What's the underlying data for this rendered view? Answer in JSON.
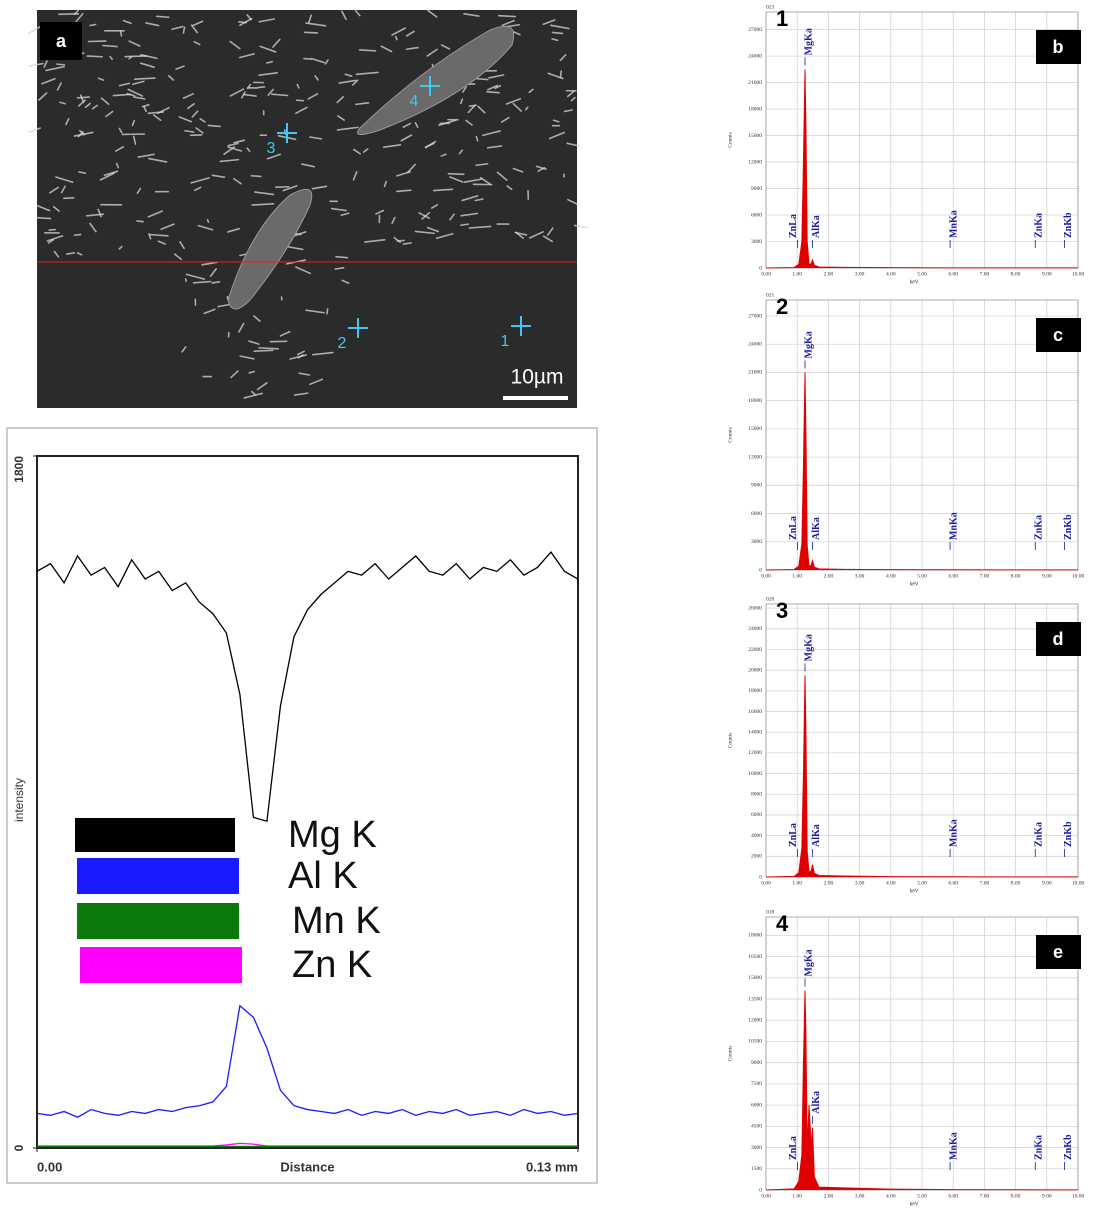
{
  "image": {
    "panel_label": "a",
    "spots": [
      "1",
      "2",
      "3",
      "4"
    ],
    "scale_bar": "10µm"
  },
  "chart_data": [
    {
      "type": "line",
      "xlabel": "Distance",
      "ylabel": "intensity",
      "xlim": [
        0,
        0.13
      ],
      "xticks": [
        {
          "value": 0,
          "label": "0.00"
        },
        {
          "value": 0.13,
          "label": "0.13 mm"
        }
      ],
      "ylim": [
        0,
        1800
      ],
      "yticks": [
        0,
        1800
      ],
      "x": [
        0,
        0.00325,
        0.0065,
        0.00975,
        0.013,
        0.01625,
        0.0195,
        0.02275,
        0.026,
        0.02925,
        0.0325,
        0.03575,
        0.039,
        0.04225,
        0.0455,
        0.04875,
        0.052,
        0.05525,
        0.0585,
        0.06175,
        0.065,
        0.06825,
        0.0715,
        0.07475,
        0.078,
        0.08125,
        0.0845,
        0.08775,
        0.091,
        0.09425,
        0.0975,
        0.10075,
        0.104,
        0.10725,
        0.1105,
        0.11375,
        0.117,
        0.12025,
        0.1235,
        0.12675,
        0.13
      ],
      "series": [
        {
          "name": "Mg K",
          "color": "#000000",
          "values": [
            1500,
            1520,
            1470,
            1540,
            1490,
            1510,
            1460,
            1530,
            1480,
            1500,
            1450,
            1470,
            1420,
            1390,
            1340,
            1180,
            860,
            850,
            1150,
            1330,
            1400,
            1440,
            1470,
            1500,
            1490,
            1520,
            1480,
            1510,
            1540,
            1500,
            1490,
            1520,
            1480,
            1510,
            1500,
            1530,
            1490,
            1510,
            1550,
            1500,
            1480
          ]
        },
        {
          "name": "Al K",
          "color": "#1a1aff",
          "values": [
            90,
            85,
            95,
            80,
            100,
            90,
            85,
            95,
            90,
            100,
            95,
            105,
            110,
            120,
            160,
            370,
            340,
            260,
            150,
            110,
            100,
            95,
            90,
            100,
            85,
            95,
            90,
            100,
            85,
            95,
            90,
            100,
            85,
            90,
            95,
            85,
            100,
            90,
            95,
            85,
            90
          ]
        },
        {
          "name": "Mn K",
          "color": "#0b7a0b",
          "values": [
            4,
            4,
            4,
            4,
            4,
            4,
            4,
            4,
            4,
            4,
            4,
            4,
            4,
            4,
            4,
            4,
            4,
            4,
            4,
            4,
            4,
            4,
            4,
            4,
            4,
            4,
            4,
            4,
            4,
            4,
            4,
            4,
            4,
            4,
            4,
            4,
            4,
            4,
            4,
            4,
            4
          ]
        },
        {
          "name": "Zn K",
          "color": "#ff00ff",
          "values": [
            5,
            5,
            5,
            5,
            5,
            5,
            5,
            5,
            5,
            5,
            5,
            5,
            5,
            5,
            8,
            12,
            10,
            5,
            5,
            5,
            5,
            5,
            5,
            5,
            5,
            5,
            5,
            5,
            5,
            5,
            5,
            5,
            5,
            5,
            5,
            5,
            5,
            5,
            5,
            5,
            5
          ]
        }
      ]
    },
    {
      "type": "area",
      "panel_label": "b",
      "spot_label": "1",
      "corner_label": "023",
      "xlabel": "keV",
      "ylabel": "Counts",
      "grid": true,
      "xlim": [
        0,
        10
      ],
      "xticks": [
        {
          "value": 0,
          "label": "0.00"
        },
        {
          "value": 1,
          "label": "1.00"
        },
        {
          "value": 2,
          "label": "2.00"
        },
        {
          "value": 3,
          "label": "3.00"
        },
        {
          "value": 4,
          "label": "4.00"
        },
        {
          "value": 5,
          "label": "5.00"
        },
        {
          "value": 6,
          "label": "6.00"
        },
        {
          "value": 7,
          "label": "7.00"
        },
        {
          "value": 8,
          "label": "8.00"
        },
        {
          "value": 9,
          "label": "9.00"
        },
        {
          "value": 10,
          "label": "10.00"
        }
      ],
      "ylim": [
        0,
        29000
      ],
      "yticks": [
        0,
        3000,
        6000,
        9000,
        12000,
        15000,
        18000,
        21000,
        24000,
        27000
      ],
      "x": [
        0,
        0.9,
        1.05,
        1.15,
        1.2,
        1.25,
        1.28,
        1.32,
        1.38,
        1.45,
        1.49,
        1.55,
        1.7,
        2.5,
        4,
        6,
        10
      ],
      "series": [
        {
          "color": "#e00000",
          "values": [
            0,
            60,
            400,
            3000,
            12000,
            22500,
            16000,
            3000,
            400,
            500,
            900,
            300,
            120,
            70,
            40,
            20,
            10
          ]
        }
      ],
      "peaks": [
        {
          "label": "ZnLa",
          "x": 1.01
        },
        {
          "label": "MgKa",
          "x": 1.25
        },
        {
          "label": "AlKa",
          "x": 1.49
        },
        {
          "label": "MnKa",
          "x": 5.9
        },
        {
          "label": "ZnKa",
          "x": 8.63
        },
        {
          "label": "ZnKb",
          "x": 9.57
        }
      ]
    },
    {
      "type": "area",
      "panel_label": "c",
      "spot_label": "2",
      "corner_label": "021",
      "xlabel": "keV",
      "ylabel": "Counts",
      "grid": true,
      "xlim": [
        0,
        10
      ],
      "xticks": [
        {
          "value": 0,
          "label": "0.00"
        },
        {
          "value": 1,
          "label": "1.00"
        },
        {
          "value": 2,
          "label": "2.00"
        },
        {
          "value": 3,
          "label": "3.00"
        },
        {
          "value": 4,
          "label": "4.00"
        },
        {
          "value": 5,
          "label": "5.00"
        },
        {
          "value": 6,
          "label": "6.00"
        },
        {
          "value": 7,
          "label": "7.00"
        },
        {
          "value": 8,
          "label": "8.00"
        },
        {
          "value": 9,
          "label": "9.00"
        },
        {
          "value": 10,
          "label": "10.00"
        }
      ],
      "ylim": [
        0,
        28700
      ],
      "yticks": [
        0,
        3000,
        6000,
        9000,
        12000,
        15000,
        18000,
        21000,
        24000,
        27000
      ],
      "x": [
        0,
        0.9,
        1.05,
        1.15,
        1.2,
        1.25,
        1.28,
        1.32,
        1.38,
        1.45,
        1.49,
        1.55,
        1.7,
        2.5,
        4,
        6,
        10
      ],
      "series": [
        {
          "color": "#e00000",
          "values": [
            0,
            60,
            400,
            2800,
            11000,
            21000,
            14500,
            2600,
            400,
            500,
            1000,
            300,
            120,
            70,
            40,
            20,
            10
          ]
        }
      ],
      "peaks": [
        {
          "label": "ZnLa",
          "x": 1.01
        },
        {
          "label": "MgKa",
          "x": 1.25
        },
        {
          "label": "AlKa",
          "x": 1.49
        },
        {
          "label": "MnKa",
          "x": 5.9
        },
        {
          "label": "ZnKa",
          "x": 8.63
        },
        {
          "label": "ZnKb",
          "x": 9.57
        }
      ]
    },
    {
      "type": "area",
      "panel_label": "d",
      "spot_label": "3",
      "corner_label": "020",
      "xlabel": "keV",
      "ylabel": "Counts",
      "grid": true,
      "xlim": [
        0,
        10
      ],
      "xticks": [
        {
          "value": 0,
          "label": "0.00"
        },
        {
          "value": 1,
          "label": "1.00"
        },
        {
          "value": 2,
          "label": "2.00"
        },
        {
          "value": 3,
          "label": "3.00"
        },
        {
          "value": 4,
          "label": "4.00"
        },
        {
          "value": 5,
          "label": "5.00"
        },
        {
          "value": 6,
          "label": "6.00"
        },
        {
          "value": 7,
          "label": "7.00"
        },
        {
          "value": 8,
          "label": "8.00"
        },
        {
          "value": 9,
          "label": "9.00"
        },
        {
          "value": 10,
          "label": "10.00"
        }
      ],
      "ylim": [
        0,
        26400
      ],
      "yticks": [
        0,
        2000,
        4000,
        6000,
        8000,
        10000,
        12000,
        14000,
        16000,
        18000,
        20000,
        22000,
        24000,
        26000
      ],
      "x": [
        0,
        0.9,
        1.05,
        1.15,
        1.2,
        1.25,
        1.28,
        1.32,
        1.38,
        1.45,
        1.49,
        1.55,
        1.7,
        2.5,
        4,
        6,
        10
      ],
      "series": [
        {
          "color": "#e00000",
          "values": [
            0,
            60,
            400,
            2800,
            10000,
            19500,
            14000,
            2500,
            450,
            600,
            1200,
            350,
            150,
            100,
            40,
            20,
            10
          ]
        }
      ],
      "peaks": [
        {
          "label": "ZnLa",
          "x": 1.01
        },
        {
          "label": "MgKa",
          "x": 1.25
        },
        {
          "label": "AlKa",
          "x": 1.49
        },
        {
          "label": "MnKa",
          "x": 5.9
        },
        {
          "label": "ZnKa",
          "x": 8.63
        },
        {
          "label": "ZnKb",
          "x": 9.57
        }
      ]
    },
    {
      "type": "area",
      "panel_label": "e",
      "spot_label": "4",
      "corner_label": "018",
      "xlabel": "keV",
      "ylabel": "Counts",
      "grid": true,
      "xlim": [
        0,
        10
      ],
      "xticks": [
        {
          "value": 0,
          "label": "0.00"
        },
        {
          "value": 1,
          "label": "1.00"
        },
        {
          "value": 2,
          "label": "2.00"
        },
        {
          "value": 3,
          "label": "3.00"
        },
        {
          "value": 4,
          "label": "4.00"
        },
        {
          "value": 5,
          "label": "5.00"
        },
        {
          "value": 6,
          "label": "6.00"
        },
        {
          "value": 7,
          "label": "7.00"
        },
        {
          "value": 8,
          "label": "8.00"
        },
        {
          "value": 9,
          "label": "9.00"
        },
        {
          "value": 10,
          "label": "10.00"
        }
      ],
      "ylim": [
        0,
        19300
      ],
      "yticks": [
        0,
        1500,
        3000,
        4500,
        6000,
        7500,
        9000,
        10500,
        12000,
        13500,
        15000,
        16500,
        18000
      ],
      "x": [
        0,
        0.9,
        1.05,
        1.15,
        1.2,
        1.25,
        1.28,
        1.32,
        1.38,
        1.45,
        1.49,
        1.55,
        1.7,
        2.5,
        4,
        6,
        10
      ],
      "series": [
        {
          "color": "#e00000",
          "values": [
            0,
            80,
            600,
            2500,
            9000,
            14100,
            11000,
            3000,
            6000,
            3000,
            4400,
            900,
            200,
            150,
            60,
            30,
            10
          ]
        }
      ],
      "peaks": [
        {
          "label": "ZnLa",
          "x": 1.01
        },
        {
          "label": "MgKa",
          "x": 1.25
        },
        {
          "label": "AlKa",
          "x": 1.49
        },
        {
          "label": "MnKa",
          "x": 5.9
        },
        {
          "label": "ZnKa",
          "x": 8.63
        },
        {
          "label": "ZnKb",
          "x": 9.57
        }
      ]
    }
  ]
}
